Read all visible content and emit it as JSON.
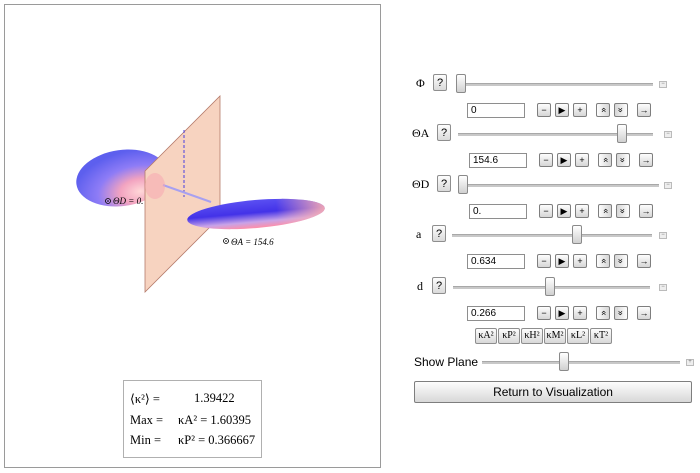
{
  "plot": {
    "label_d": "ΘD = 0.",
    "label_a": "ΘA = 154.6"
  },
  "readout": {
    "avg_label": "⟨κ²⟩ =",
    "avg_value": "1.39422",
    "max_label": "Max =",
    "max_value": "κA² = 1.60395",
    "min_label": "Min =",
    "min_value": "κP² = 0.366667"
  },
  "controls": [
    {
      "label": "Φ",
      "value": "0",
      "slider_fraction": 0.0
    },
    {
      "label": "ΘA",
      "value": "154.6",
      "slider_fraction": 0.86
    },
    {
      "label": "ΘD",
      "value": "0.",
      "slider_fraction": 0.0
    },
    {
      "label": "a",
      "value": "0.634",
      "slider_fraction": 0.63
    },
    {
      "label": "d",
      "value": "0.266",
      "slider_fraction": 0.49
    }
  ],
  "help_label": "?",
  "player_buttons": [
    "−",
    "▶",
    "+",
    "»",
    "»",
    "→"
  ],
  "kappa_buttons": [
    "κA²",
    "κP²",
    "κH²",
    "κM²",
    "κL²",
    "κT²"
  ],
  "show_plane": {
    "label": "Show Plane",
    "slider_fraction": 0.41
  },
  "return_button": "Return to Visualization",
  "colors": {
    "plane": "#f7d3c0",
    "ellipsoid_top": "#7f7ff4",
    "ellipsoid_mid": "#4b3ff0",
    "ellipsoid_glow": "#f2a3b3"
  }
}
